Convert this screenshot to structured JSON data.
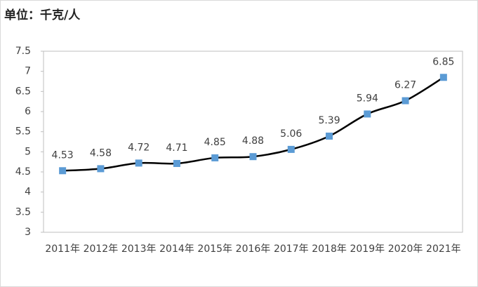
{
  "chart_data": {
    "type": "line",
    "title": "单位：千克/人",
    "categories": [
      "2011年",
      "2012年",
      "2013年",
      "2014年",
      "2015年",
      "2016年",
      "2017年",
      "2018年",
      "2019年",
      "2020年",
      "2021年"
    ],
    "values": [
      4.53,
      4.58,
      4.72,
      4.71,
      4.85,
      4.88,
      5.06,
      5.39,
      5.94,
      6.27,
      6.85
    ],
    "color": "#000000",
    "marker_color": "#5b9bd5",
    "ylim": [
      3,
      7.5
    ],
    "yticks": [
      3,
      3.5,
      4,
      4.5,
      5,
      5.5,
      6,
      6.5,
      7,
      7.5
    ],
    "grid": false
  }
}
